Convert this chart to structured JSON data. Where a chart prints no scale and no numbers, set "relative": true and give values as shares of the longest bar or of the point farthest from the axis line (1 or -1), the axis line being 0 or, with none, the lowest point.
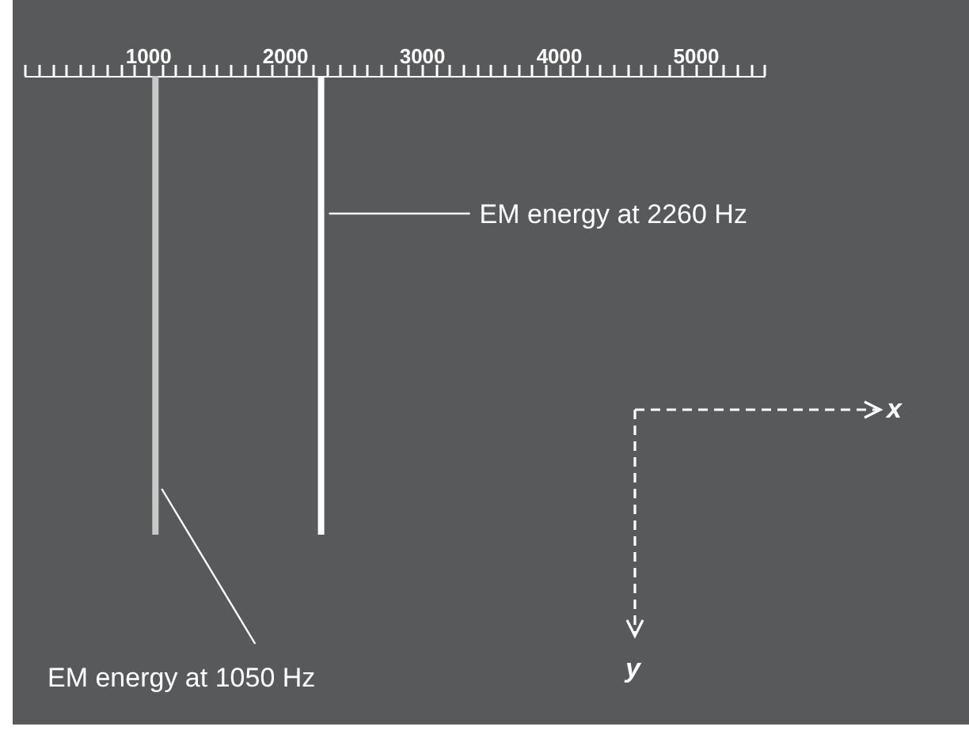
{
  "chart_data": {
    "type": "bar",
    "relative": true,
    "x": [
      1050,
      2260
    ],
    "values": [
      -1,
      -1
    ],
    "colors": [
      "#c8c8c8",
      "#ffffff"
    ],
    "xlim": [
      100,
      5500
    ],
    "xticks": [
      {
        "value": 100,
        "label": null
      },
      {
        "value": 200,
        "label": null
      },
      {
        "value": 300,
        "label": null
      },
      {
        "value": 400,
        "label": null
      },
      {
        "value": 500,
        "label": null
      },
      {
        "value": 600,
        "label": null
      },
      {
        "value": 700,
        "label": null
      },
      {
        "value": 800,
        "label": null
      },
      {
        "value": 900,
        "label": null
      },
      1000,
      {
        "value": 1100,
        "label": null
      },
      {
        "value": 1200,
        "label": null
      },
      {
        "value": 1300,
        "label": null
      },
      {
        "value": 1400,
        "label": null
      },
      {
        "value": 1500,
        "label": null
      },
      {
        "value": 1600,
        "label": null
      },
      {
        "value": 1700,
        "label": null
      },
      {
        "value": 1800,
        "label": null
      },
      {
        "value": 1900,
        "label": null
      },
      2000,
      {
        "value": 2100,
        "label": null
      },
      {
        "value": 2200,
        "label": null
      },
      {
        "value": 2300,
        "label": null
      },
      {
        "value": 2400,
        "label": null
      },
      {
        "value": 2500,
        "label": null
      },
      {
        "value": 2600,
        "label": null
      },
      {
        "value": 2700,
        "label": null
      },
      {
        "value": 2800,
        "label": null
      },
      {
        "value": 2900,
        "label": null
      },
      3000,
      {
        "value": 3100,
        "label": null
      },
      {
        "value": 3200,
        "label": null
      },
      {
        "value": 3300,
        "label": null
      },
      {
        "value": 3400,
        "label": null
      },
      {
        "value": 3500,
        "label": null
      },
      {
        "value": 3600,
        "label": null
      },
      {
        "value": 3700,
        "label": null
      },
      {
        "value": 3800,
        "label": null
      },
      {
        "value": 3900,
        "label": null
      },
      4000,
      {
        "value": 4100,
        "label": null
      },
      {
        "value": 4200,
        "label": null
      },
      {
        "value": 4300,
        "label": null
      },
      {
        "value": 4400,
        "label": null
      },
      {
        "value": 4500,
        "label": null
      },
      {
        "value": 4600,
        "label": null
      },
      {
        "value": 4700,
        "label": null
      },
      {
        "value": 4800,
        "label": null
      },
      {
        "value": 4900,
        "label": null
      },
      5000,
      {
        "value": 5100,
        "label": null
      },
      {
        "value": 5200,
        "label": null
      },
      {
        "value": 5300,
        "label": null
      },
      {
        "value": 5400,
        "label": null
      },
      {
        "value": 5500,
        "label": null
      }
    ],
    "annotations": [
      {
        "text": "EM energy at 1050 Hz",
        "x": 1050,
        "y": -0.9
      },
      {
        "text": "EM energy at 2260 Hz",
        "x": 2260,
        "y": -0.3
      },
      "x",
      "y"
    ]
  }
}
